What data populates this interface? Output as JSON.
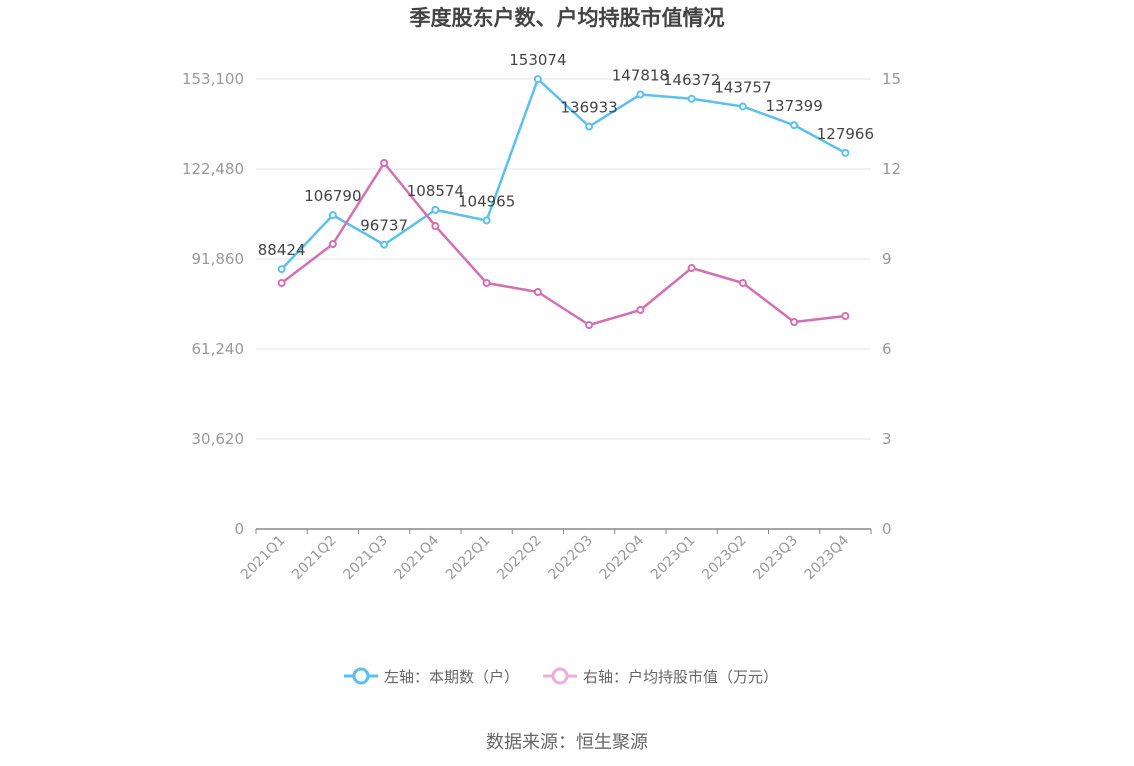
{
  "chart_data": {
    "type": "line",
    "title": "季度股东户数、户均持股市值情况",
    "categories": [
      "2021Q1",
      "2021Q2",
      "2021Q3",
      "2021Q4",
      "2022Q1",
      "2022Q2",
      "2022Q3",
      "2022Q4",
      "2023Q1",
      "2023Q2",
      "2023Q3",
      "2023Q4"
    ],
    "y_left": {
      "ticks": [
        "0",
        "30,620",
        "61,240",
        "91,860",
        "122,480",
        "153,100"
      ],
      "ylim": [
        0,
        153100
      ]
    },
    "y_right": {
      "ticks": [
        "0",
        "3",
        "6",
        "9",
        "12",
        "15"
      ],
      "ylim": [
        0,
        15
      ]
    },
    "series": [
      {
        "name": "左轴：本期数（户）",
        "axis": "left",
        "color": "#5bc0f0",
        "values": [
          88424,
          106790,
          96737,
          108574,
          104965,
          153074,
          136933,
          147818,
          146372,
          143757,
          137399,
          127966
        ],
        "labels": [
          "88424",
          "106790",
          "96737",
          "108574",
          "104965",
          "153074",
          "136933",
          "147818",
          "146372",
          "143757",
          "137399",
          "127966"
        ]
      },
      {
        "name": "右轴：户均持股市值（万元）",
        "axis": "right",
        "color": "#d46fb4",
        "legend_color": "#eeaed6",
        "values": [
          8.2,
          9.5,
          12.2,
          10.1,
          8.2,
          7.9,
          6.8,
          7.3,
          8.7,
          8.2,
          6.9,
          7.1
        ]
      }
    ],
    "grid": true,
    "legend_position": "bottom"
  },
  "source": "数据来源：恒生聚源"
}
